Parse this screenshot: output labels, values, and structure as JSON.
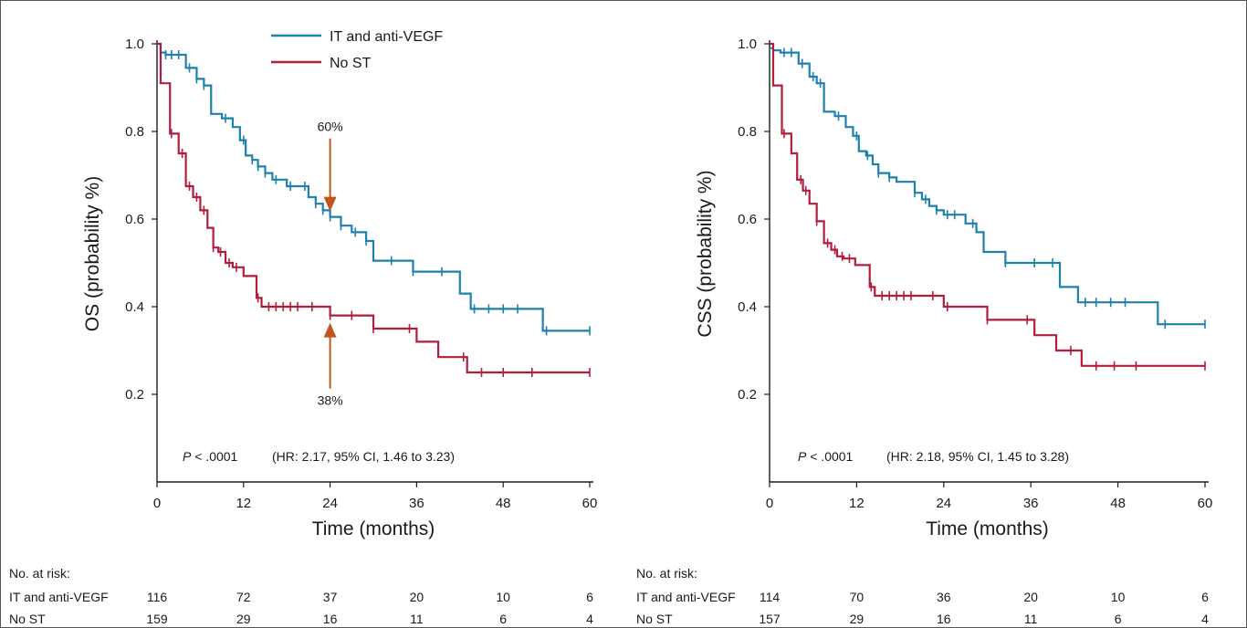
{
  "colors": {
    "it": "#1d80ae",
    "nost": "#b01e3c",
    "arrow": "#c0561e",
    "axis": "#1a1a1a"
  },
  "chart_data": [
    {
      "type": "line",
      "step": true,
      "ylabel": "OS (probability %)",
      "xlabel": "Time (months)",
      "xlim": [
        0,
        60
      ],
      "ylim": [
        0,
        1.0
      ],
      "xticks": [
        "0",
        "12",
        "24",
        "36",
        "48",
        "60"
      ],
      "yticks": [
        "0.2",
        "0.4",
        "0.6",
        "0.8",
        "1.0"
      ],
      "legend": {
        "position": "top",
        "entries": [
          "IT and anti-VEGF",
          "No ST"
        ]
      },
      "pvalue_label": "P",
      "pvalue_text": " < .0001",
      "hr_text": "(HR: 2.17, 95% CI, 1.46 to 3.23)",
      "annotations": [
        {
          "text": "60%",
          "x": 24,
          "y": 0.605,
          "series": "IT and anti-VEGF"
        },
        {
          "text": "38%",
          "x": 24,
          "y": 0.38,
          "series": "No ST"
        }
      ],
      "series": [
        {
          "name": "IT and anti-VEGF",
          "color": "#1d80ae",
          "x": [
            0,
            0.5,
            1.2,
            2.0,
            3.0,
            4.0,
            5.5,
            6.5,
            7.5,
            9.0,
            10.5,
            11.5,
            12.3,
            13.2,
            14.0,
            15.0,
            16.0,
            18.0,
            21.0,
            22.0,
            23.0,
            24.0,
            25.5,
            27.0,
            29.0,
            30.0,
            32.5,
            35.5,
            38.5,
            42.0,
            43.5,
            53.5,
            60
          ],
          "y": [
            1.0,
            0.98,
            0.975,
            0.975,
            0.975,
            0.945,
            0.92,
            0.905,
            0.84,
            0.83,
            0.81,
            0.78,
            0.745,
            0.735,
            0.72,
            0.705,
            0.69,
            0.675,
            0.65,
            0.635,
            0.62,
            0.605,
            0.585,
            0.57,
            0.55,
            0.505,
            0.505,
            0.48,
            0.48,
            0.43,
            0.395,
            0.345,
            0.345
          ],
          "censor": [
            1.2,
            2.0,
            3.0,
            4.5,
            5.5,
            6.5,
            9.5,
            12.0,
            13.2,
            14.0,
            15.0,
            16.5,
            18.5,
            20.5,
            22.0,
            23.0,
            24.0,
            25.5,
            27.5,
            29.0,
            32.5,
            35.5,
            39.5,
            44.0,
            46.0,
            48.0,
            50.0,
            54.0,
            60.0
          ]
        },
        {
          "name": "No ST",
          "color": "#b01e3c",
          "x": [
            0,
            0.5,
            1.8,
            3.0,
            4.0,
            5.0,
            6.0,
            7.0,
            7.8,
            8.5,
            9.5,
            10.5,
            12.0,
            13.8,
            14.5,
            24.0,
            30.0,
            36.0,
            39.0,
            43.0,
            60
          ],
          "y": [
            1.0,
            0.91,
            0.795,
            0.75,
            0.675,
            0.65,
            0.62,
            0.58,
            0.535,
            0.525,
            0.5,
            0.49,
            0.47,
            0.42,
            0.4,
            0.38,
            0.35,
            0.32,
            0.285,
            0.25,
            0.25
          ],
          "censor": [
            2.0,
            3.5,
            4.5,
            5.5,
            6.5,
            7.8,
            8.8,
            10.0,
            11.0,
            14.0,
            15.5,
            16.5,
            17.5,
            18.5,
            19.5,
            21.5,
            24.0,
            27.0,
            30.0,
            35.0,
            42.5,
            45.0,
            48.0,
            52.0,
            60.0
          ]
        }
      ],
      "risk_table": {
        "title": "No. at risk:",
        "rows": [
          {
            "label": "IT and anti-VEGF",
            "values": [
              "116",
              "72",
              "37",
              "20",
              "10",
              "6"
            ]
          },
          {
            "label": "No ST",
            "values": [
              "159",
              "29",
              "16",
              "11",
              "6",
              "4"
            ]
          }
        ]
      }
    },
    {
      "type": "line",
      "step": true,
      "ylabel": "CSS (probability %)",
      "xlabel": "Time (months)",
      "xlim": [
        0,
        60
      ],
      "ylim": [
        0,
        1.0
      ],
      "xticks": [
        "0",
        "12",
        "24",
        "36",
        "48",
        "60"
      ],
      "yticks": [
        "0.2",
        "0.4",
        "0.6",
        "0.8",
        "1.0"
      ],
      "pvalue_label": "P",
      "pvalue_text": " < .0001",
      "hr_text": "(HR: 2.18, 95% CI, 1.45 to 3.28)",
      "series": [
        {
          "name": "IT and anti-VEGF",
          "color": "#1d80ae",
          "x": [
            0,
            0.5,
            1.5,
            3.0,
            4.0,
            5.5,
            6.5,
            7.5,
            9.0,
            10.5,
            11.5,
            12.3,
            13.3,
            14.2,
            15.0,
            16.5,
            17.5,
            20.0,
            21.0,
            22.0,
            23.0,
            24.0,
            27.0,
            28.5,
            29.5,
            32.5,
            40.0,
            42.5,
            53.5,
            60
          ],
          "y": [
            0.99,
            0.985,
            0.98,
            0.98,
            0.955,
            0.925,
            0.91,
            0.845,
            0.835,
            0.81,
            0.79,
            0.755,
            0.745,
            0.725,
            0.705,
            0.695,
            0.685,
            0.66,
            0.645,
            0.63,
            0.62,
            0.61,
            0.59,
            0.57,
            0.525,
            0.5,
            0.445,
            0.41,
            0.36,
            0.36
          ],
          "censor": [
            2.0,
            3.0,
            4.5,
            6.0,
            7.0,
            9.5,
            12.0,
            13.5,
            15.0,
            16.5,
            20.0,
            21.5,
            23.0,
            24.5,
            25.5,
            28.0,
            32.5,
            36.5,
            39.0,
            43.5,
            45.0,
            47.0,
            49.0,
            54.5,
            60.0
          ]
        },
        {
          "name": "No ST",
          "color": "#b01e3c",
          "x": [
            0,
            0.5,
            1.7,
            3.0,
            3.8,
            4.6,
            5.5,
            6.5,
            7.5,
            8.5,
            9.3,
            10.2,
            11.8,
            13.8,
            14.5,
            24.0,
            30.0,
            36.5,
            39.5,
            43.0,
            60
          ],
          "y": [
            1.0,
            0.905,
            0.795,
            0.75,
            0.69,
            0.665,
            0.635,
            0.595,
            0.545,
            0.53,
            0.515,
            0.51,
            0.495,
            0.445,
            0.425,
            0.4,
            0.37,
            0.335,
            0.3,
            0.265,
            0.265
          ],
          "censor": [
            2.0,
            4.3,
            5.0,
            6.5,
            8.0,
            9.0,
            10.0,
            11.0,
            14.0,
            15.5,
            16.5,
            17.5,
            18.5,
            19.5,
            22.5,
            24.5,
            30.0,
            35.5,
            41.5,
            45.0,
            47.5,
            50.5,
            60.0
          ]
        }
      ],
      "risk_table": {
        "title": "No. at risk:",
        "rows": [
          {
            "label": "IT and anti-VEGF",
            "values": [
              "114",
              "70",
              "36",
              "20",
              "10",
              "6"
            ]
          },
          {
            "label": "No ST",
            "values": [
              "157",
              "29",
              "16",
              "11",
              "6",
              "4"
            ]
          }
        ]
      }
    }
  ]
}
